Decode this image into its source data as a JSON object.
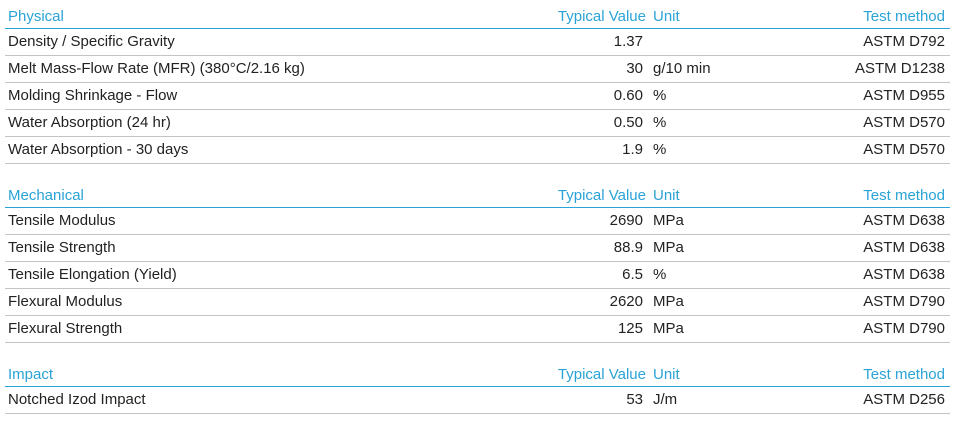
{
  "sections": [
    {
      "header": {
        "name": "Physical",
        "value": "Typical Value",
        "unit": "Unit",
        "method": "Test method"
      },
      "rows": [
        {
          "property": "Density / Specific Gravity",
          "value": "1.37",
          "method": "ASTM D792"
        },
        {
          "property": "Melt Mass-Flow Rate (MFR) (380°C/2.16 kg)",
          "value": "30",
          "unit": "g/10 min",
          "method": "ASTM D1238"
        },
        {
          "property": "Molding Shrinkage - Flow",
          "value": "0.60",
          "unit": "%",
          "method": "ASTM D955"
        },
        {
          "property": "Water Absorption (24 hr)",
          "value": "0.50",
          "unit": "%",
          "method": "ASTM D570"
        },
        {
          "property": "Water Absorption - 30 days",
          "value": "1.9",
          "unit": "%",
          "method": "ASTM D570"
        }
      ]
    },
    {
      "header": {
        "name": "Mechanical",
        "value": "Typical Value",
        "unit": "Unit",
        "method": "Test method"
      },
      "rows": [
        {
          "property": "Tensile Modulus",
          "value": "2690",
          "unit": "MPa",
          "method": "ASTM D638"
        },
        {
          "property": "Tensile Strength",
          "value": "88.9",
          "unit": "MPa",
          "method": "ASTM D638"
        },
        {
          "property": "Tensile Elongation (Yield)",
          "value": "6.5",
          "unit": "%",
          "method": "ASTM D638"
        },
        {
          "property": "Flexural Modulus",
          "value": "2620",
          "unit": "MPa",
          "method": "ASTM D790"
        },
        {
          "property": "Flexural Strength",
          "value": "125",
          "unit": "MPa",
          "method": "ASTM D790"
        }
      ]
    },
    {
      "header": {
        "name": "Impact",
        "value": "Typical Value",
        "unit": "Unit",
        "method": "Test method"
      },
      "rows": [
        {
          "property": "Notched Izod Impact",
          "value": "53",
          "unit": "J/m",
          "method": "ASTM D256"
        }
      ]
    }
  ]
}
